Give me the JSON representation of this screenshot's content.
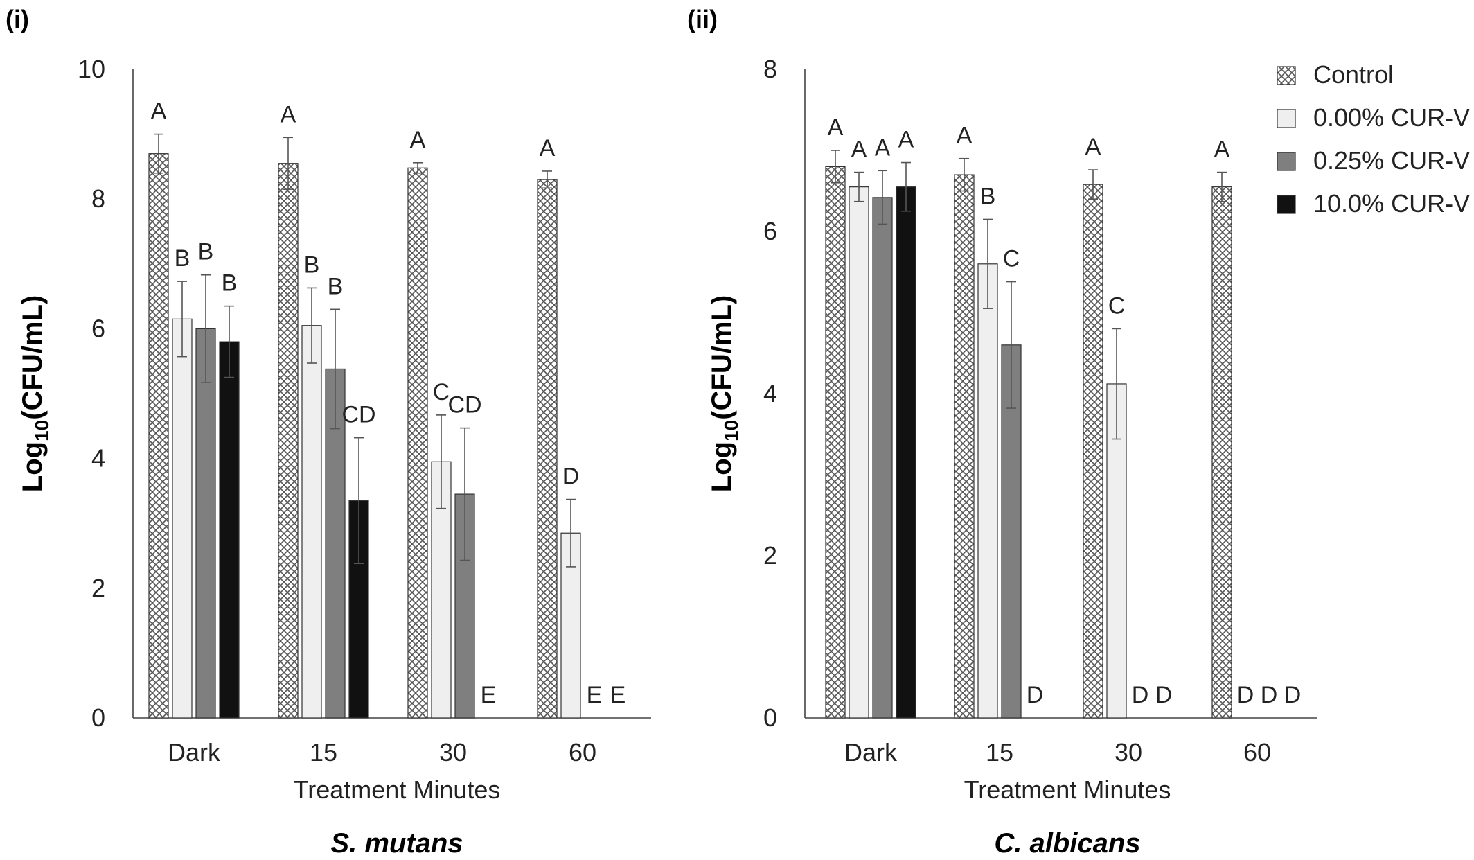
{
  "chart_data": [
    {
      "type": "bar",
      "panel_label": "(i)",
      "caption": "S. mutans",
      "ylabel_main": "Log",
      "ylabel_sub": "10",
      "ylabel_rest": "(CFU/mL)",
      "xlabel": "Treatment Minutes",
      "ylim": [
        0,
        10
      ],
      "yticks": [
        "0",
        "2",
        "4",
        "6",
        "8",
        "10"
      ],
      "grid": false,
      "categories": [
        "Dark",
        "15",
        "30",
        "60"
      ],
      "series": [
        {
          "name": "Control",
          "values": [
            8.7,
            8.55,
            8.48,
            8.3
          ],
          "errors": [
            0.3,
            0.4,
            0.08,
            0.13
          ],
          "letters": [
            "A",
            "A",
            "A",
            "A"
          ]
        },
        {
          "name": "0.00% CUR-V",
          "values": [
            6.15,
            6.05,
            3.95,
            2.85
          ],
          "errors": [
            0.58,
            0.58,
            0.72,
            0.52
          ],
          "letters": [
            "B",
            "B",
            "C",
            "D"
          ]
        },
        {
          "name": "0.25% CUR-V",
          "values": [
            6.0,
            5.38,
            3.45,
            0
          ],
          "errors": [
            0.83,
            0.92,
            1.02,
            0
          ],
          "letters": [
            "B",
            "B",
            "CD",
            "E"
          ]
        },
        {
          "name": "10.0% CUR-V",
          "values": [
            5.8,
            3.35,
            0,
            0
          ],
          "errors": [
            0.55,
            0.97,
            0,
            0
          ],
          "letters": [
            "B",
            "CD",
            "E",
            "E"
          ]
        }
      ]
    },
    {
      "type": "bar",
      "panel_label": "(ii)",
      "caption": "C. albicans",
      "ylabel_main": "Log",
      "ylabel_sub": "10",
      "ylabel_rest": "(CFU/mL)",
      "xlabel": "Treatment Minutes",
      "ylim": [
        0,
        8
      ],
      "yticks": [
        "0",
        "2",
        "4",
        "6",
        "8"
      ],
      "grid": false,
      "legend_position": "top-right",
      "categories": [
        "Dark",
        "15",
        "30",
        "60"
      ],
      "series": [
        {
          "name": "Control",
          "values": [
            6.8,
            6.7,
            6.58,
            6.55
          ],
          "errors": [
            0.2,
            0.2,
            0.18,
            0.18
          ],
          "letters": [
            "A",
            "A",
            "A",
            "A"
          ]
        },
        {
          "name": "0.00% CUR-V",
          "values": [
            6.55,
            5.6,
            4.12,
            0
          ],
          "errors": [
            0.18,
            0.55,
            0.68,
            0
          ],
          "letters": [
            "A",
            "B",
            "C",
            "D"
          ]
        },
        {
          "name": "0.25% CUR-V",
          "values": [
            6.42,
            4.6,
            0,
            0
          ],
          "errors": [
            0.33,
            0.78,
            0,
            0
          ],
          "letters": [
            "A",
            "C",
            "D",
            "D"
          ]
        },
        {
          "name": "10.0% CUR-V",
          "values": [
            6.55,
            0,
            0,
            0
          ],
          "errors": [
            0.3,
            0,
            0,
            0
          ],
          "letters": [
            "A",
            "D",
            "D",
            "D"
          ]
        }
      ]
    }
  ],
  "legend": [
    {
      "label": "Control",
      "fill": "hatch"
    },
    {
      "label": "0.00% CUR-V",
      "fill": "#efefef"
    },
    {
      "label": "0.25% CUR-V",
      "fill": "#7f7f7f"
    },
    {
      "label": "10.0% CUR-V",
      "fill": "#111111"
    }
  ],
  "colors": {
    "control_hatch": "#555555",
    "bar_0_00": "#efefef",
    "bar_0_25": "#7f7f7f",
    "bar_10_0": "#111111",
    "axis": "#444444"
  }
}
